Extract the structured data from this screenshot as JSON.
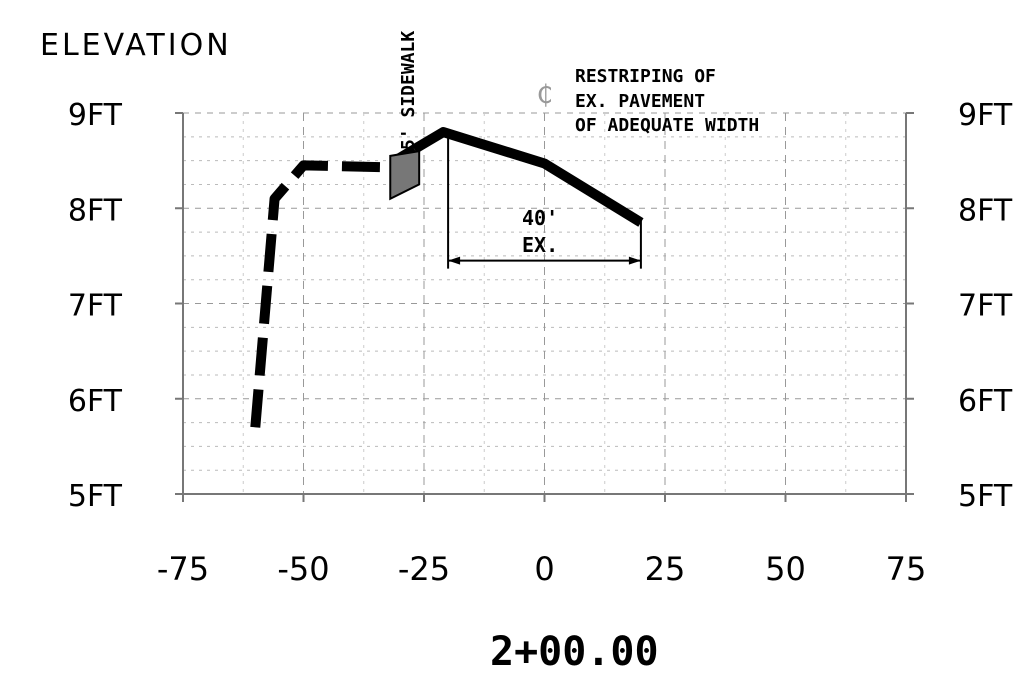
{
  "title": "ELEVATION",
  "station": "2+00.00",
  "centerline_symbol": "₵",
  "notes": {
    "sidewalk": "5' SIDEWALK",
    "restriping": [
      "RESTRIPING OF",
      "EX. PAVEMENT",
      "OF ADEQUATE WIDTH"
    ],
    "dimension": [
      "40'",
      "EX."
    ]
  },
  "chart_data": {
    "type": "line",
    "x_ticks": [
      "-75",
      "-50",
      "-25",
      "0",
      "25",
      "50",
      "75"
    ],
    "y_ticks": [
      "5FT",
      "6FT",
      "7FT",
      "8FT",
      "9FT"
    ],
    "xlim": [
      -75,
      75
    ],
    "ylim": [
      5,
      9
    ],
    "grid": true,
    "series": [
      {
        "style": "dashed-heavy",
        "x": [
          -60,
          -56,
          -50,
          -32
        ],
        "y": [
          5.7,
          8.1,
          8.45,
          8.43
        ]
      },
      {
        "style": "solid-heavy",
        "x": [
          -27,
          -21,
          0,
          20
        ],
        "y": [
          8.62,
          8.8,
          8.47,
          7.85
        ]
      }
    ],
    "sidewalk_block": {
      "x": [
        -32,
        -26
      ],
      "y_top": [
        8.55,
        8.6
      ],
      "y_bottom": [
        8.1,
        8.25
      ]
    },
    "dimension": {
      "x_start": -20,
      "x_end": 20,
      "y": 7.45
    }
  }
}
